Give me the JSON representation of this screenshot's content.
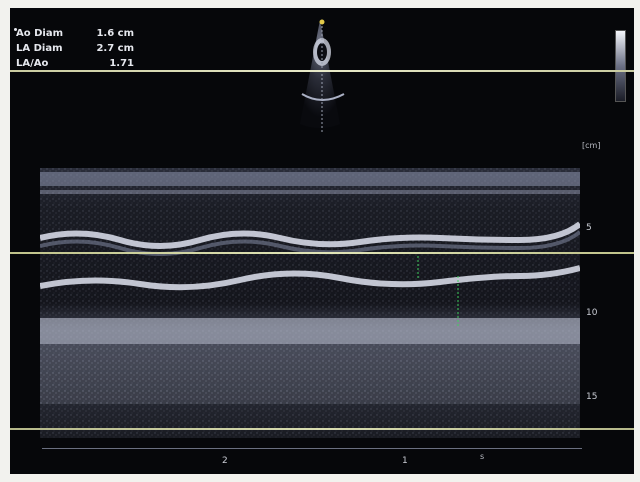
{
  "measurements": [
    {
      "label": "Ao Diam",
      "value": "1.6 cm"
    },
    {
      "label": "LA Diam",
      "value": "2.7 cm"
    },
    {
      "label": "LA/Ao",
      "value": "1.71"
    }
  ],
  "depth_unit": "[cm]",
  "depth_ticks": [
    "5",
    "10",
    "15"
  ],
  "time_ticks": [
    "2",
    "1"
  ],
  "time_unit": "s",
  "gain_label": "",
  "colors": {
    "background": "#06070a",
    "echo": "#dfe3f0",
    "caliper": "#3fd15e",
    "marker": "#e2c94a"
  }
}
